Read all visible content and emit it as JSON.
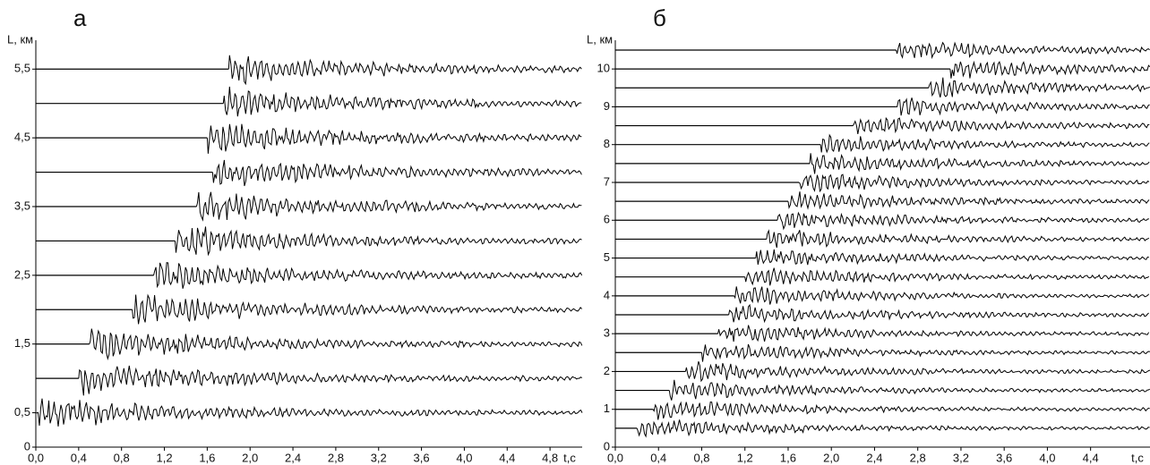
{
  "chart_data": [
    {
      "type": "seismogram",
      "title": "а",
      "y_label": "L, км",
      "x_label": "t,c",
      "xlim": [
        0,
        5.1
      ],
      "ylim": [
        0,
        5.92
      ],
      "xticks": [
        {
          "value": 0,
          "label": "0,0"
        },
        {
          "value": 0.4,
          "label": "0,4"
        },
        {
          "value": 0.8,
          "label": "0,8"
        },
        {
          "value": 1.2,
          "label": "1,2"
        },
        {
          "value": 1.6,
          "label": "1,6"
        },
        {
          "value": 2.0,
          "label": "2,0"
        },
        {
          "value": 2.4,
          "label": "2,4"
        },
        {
          "value": 2.8,
          "label": "2,8"
        },
        {
          "value": 3.2,
          "label": "3,2"
        },
        {
          "value": 3.6,
          "label": "3,6"
        },
        {
          "value": 4.0,
          "label": "4,0"
        },
        {
          "value": 4.4,
          "label": "4,4"
        },
        {
          "value": 4.8,
          "label": "4,8"
        }
      ],
      "yticks": [
        0,
        {
          "value": 0.5,
          "label": "0,5"
        },
        {
          "value": 1.5,
          "label": "1,5"
        },
        {
          "value": 2.5,
          "label": "2,5"
        },
        {
          "value": 3.5,
          "label": "3,5"
        },
        {
          "value": 4.5,
          "label": "4,5"
        },
        {
          "value": 5.5,
          "label": "5,5"
        }
      ],
      "offsets": [
        0.5,
        1.0,
        1.5,
        2.0,
        2.5,
        3.0,
        3.5,
        4.0,
        4.5,
        5.0,
        5.5
      ],
      "onsets": [
        0.0,
        0.4,
        0.5,
        0.9,
        1.1,
        1.3,
        1.5,
        1.65,
        1.6,
        1.75,
        1.8
      ]
    },
    {
      "type": "seismogram",
      "title": "б",
      "y_label": "L, км",
      "x_label": "t,c",
      "xlim": [
        0,
        4.95
      ],
      "ylim": [
        0,
        10.76
      ],
      "xticks": [
        {
          "value": 0,
          "label": "0,0"
        },
        {
          "value": 0.4,
          "label": "0,4"
        },
        {
          "value": 0.8,
          "label": "0,8"
        },
        {
          "value": 1.2,
          "label": "1,2"
        },
        {
          "value": 1.6,
          "label": "1,6"
        },
        {
          "value": 2.0,
          "label": "2,0"
        },
        {
          "value": 2.4,
          "label": "2,4"
        },
        {
          "value": 2.8,
          "label": "2,8"
        },
        {
          "value": 3.2,
          "label": "3,2"
        },
        {
          "value": 3.6,
          "label": "3,6"
        },
        {
          "value": 4.0,
          "label": "4,0"
        },
        {
          "value": 4.4,
          "label": "4,4"
        }
      ],
      "yticks": [
        0,
        1,
        2,
        3,
        4,
        5,
        6,
        7,
        8,
        9,
        10
      ],
      "offsets": [
        0.5,
        1.0,
        1.5,
        2.0,
        2.5,
        3.0,
        3.5,
        4.0,
        4.5,
        5.0,
        5.5,
        6.0,
        6.5,
        7.0,
        7.5,
        8.0,
        8.5,
        9.0,
        9.5,
        10.0,
        10.5
      ],
      "onsets": [
        0.2,
        0.35,
        0.5,
        0.65,
        0.8,
        0.95,
        1.05,
        1.1,
        1.2,
        1.3,
        1.4,
        1.5,
        1.6,
        1.7,
        1.8,
        1.9,
        2.2,
        2.6,
        2.9,
        3.1,
        2.6
      ]
    }
  ]
}
